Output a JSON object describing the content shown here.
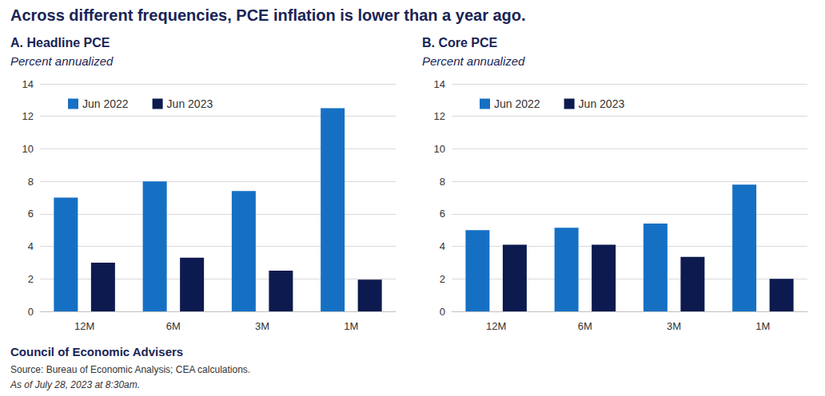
{
  "title": "Across different frequencies, PCE inflation is lower than a year ago.",
  "footer": {
    "organization": "Council of Economic Advisers",
    "source": "Source: Bureau of Economic Analysis; CEA calculations.",
    "as_of": "As of July 28, 2023 at 8:30am."
  },
  "chart_data": [
    {
      "type": "bar",
      "title": "A. Headline PCE",
      "subtitle": "Percent annualized",
      "categories": [
        "12M",
        "6M",
        "3M",
        "1M"
      ],
      "series": [
        {
          "name": "Jun 2022",
          "color": "#1570c4",
          "values": [
            7.0,
            8.0,
            7.4,
            12.5
          ]
        },
        {
          "name": "Jun 2023",
          "color": "#0c1a4f",
          "values": [
            3.0,
            3.3,
            2.5,
            1.95
          ]
        }
      ],
      "ylim": [
        0,
        14
      ],
      "yticks": [
        0,
        2,
        4,
        6,
        8,
        10,
        12,
        14
      ],
      "grid": true,
      "legend": "top-left"
    },
    {
      "type": "bar",
      "title": "B. Core PCE",
      "subtitle": "Percent annualized",
      "categories": [
        "12M",
        "6M",
        "3M",
        "1M"
      ],
      "series": [
        {
          "name": "Jun 2022",
          "color": "#1570c4",
          "values": [
            5.0,
            5.15,
            5.4,
            7.8
          ]
        },
        {
          "name": "Jun 2023",
          "color": "#0c1a4f",
          "values": [
            4.1,
            4.1,
            3.35,
            2.0
          ]
        }
      ],
      "ylim": [
        0,
        14
      ],
      "yticks": [
        0,
        2,
        4,
        6,
        8,
        10,
        12,
        14
      ],
      "grid": true,
      "legend": "top-left"
    }
  ]
}
